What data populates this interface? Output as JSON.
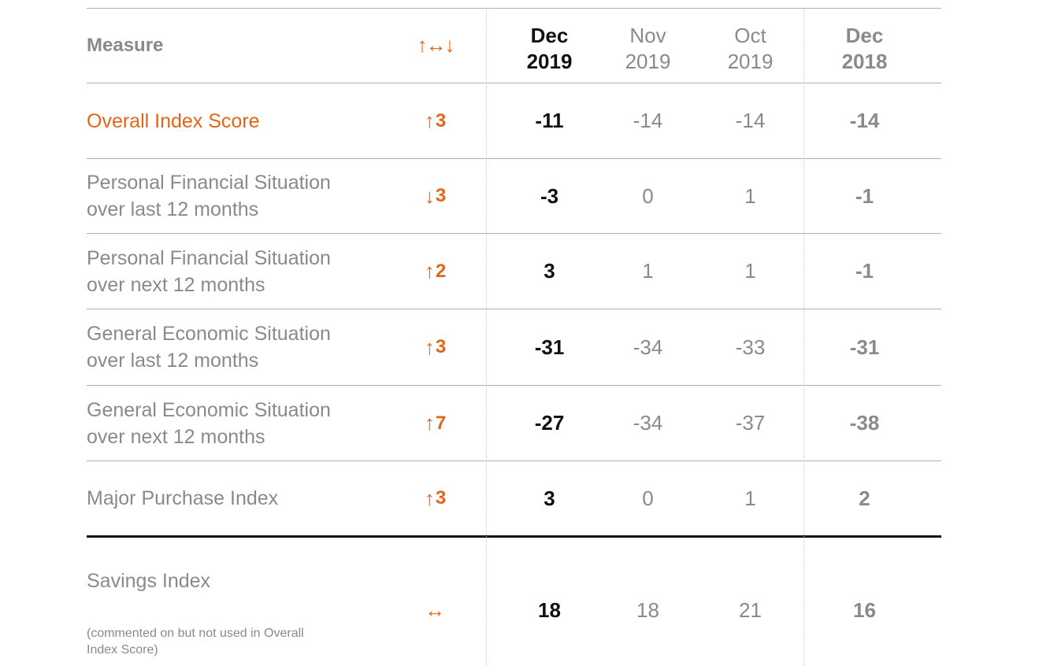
{
  "header": {
    "measure": "Measure",
    "change_symbol": "↑↔↓",
    "columns": [
      {
        "month": "Dec",
        "year": "2019"
      },
      {
        "month": "Nov",
        "year": "2019"
      },
      {
        "month": "Oct",
        "year": "2019"
      },
      {
        "month": "Dec",
        "year": "2018"
      }
    ]
  },
  "rows": [
    {
      "line1": "Overall Index Score",
      "line2": "",
      "arrow": "↑",
      "change": "3",
      "values": [
        "-11",
        "-14",
        "-14",
        "-14"
      ]
    },
    {
      "line1": "Personal Financial Situation",
      "line2": "over last 12 months",
      "arrow": "↓",
      "change": "3",
      "values": [
        "-3",
        "0",
        "1",
        "-1"
      ]
    },
    {
      "line1": "Personal Financial Situation",
      "line2": "over next 12 months",
      "arrow": "↑",
      "change": "2",
      "values": [
        "3",
        "1",
        "1",
        "-1"
      ]
    },
    {
      "line1": "General Economic Situation",
      "line2": "over last 12 months",
      "arrow": "↑",
      "change": "3",
      "values": [
        "-31",
        "-34",
        "-33",
        "-31"
      ]
    },
    {
      "line1": "General Economic Situation",
      "line2": "over next 12 months",
      "arrow": "↑",
      "change": "7",
      "values": [
        "-27",
        "-34",
        "-37",
        "-38"
      ]
    },
    {
      "line1": "Major Purchase Index",
      "line2": "",
      "arrow": "↑",
      "change": "3",
      "values": [
        "3",
        "0",
        "1",
        "2"
      ]
    }
  ],
  "savings": {
    "label": "Savings Index",
    "note_line1": "(commented on but not used in Overall",
    "note_line2": "Index Score)",
    "arrow": "↔",
    "values": [
      "18",
      "18",
      "21",
      "16"
    ]
  },
  "colors": {
    "accent": "#e2661a",
    "muted": "#8a8a8a",
    "strong": "#111111"
  }
}
